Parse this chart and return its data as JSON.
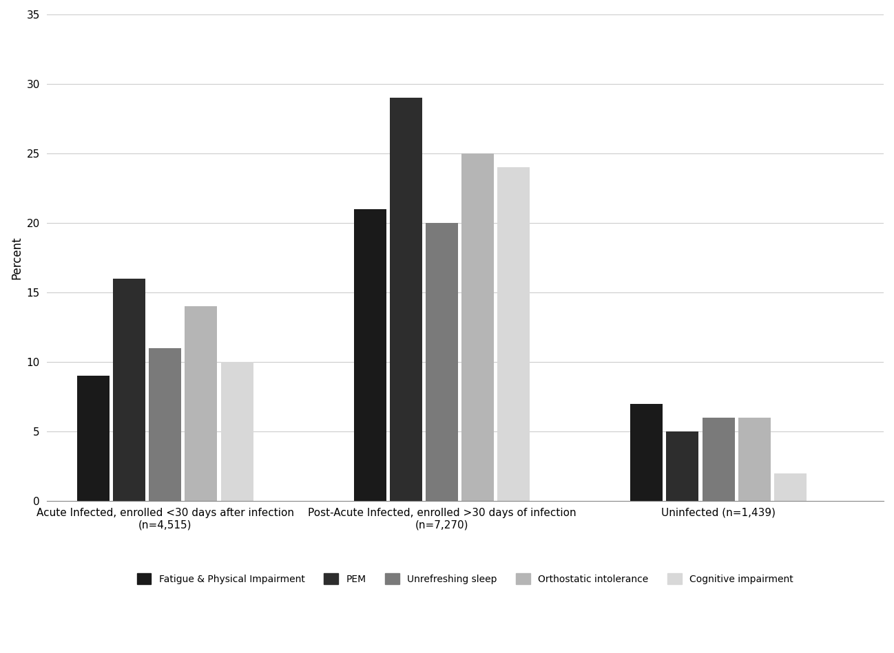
{
  "groups": [
    "Acute Infected, enrolled <30 days after infection\n(n=4,515)",
    "Post-Acute Infected, enrolled >30 days of infection\n(n=7,270)",
    "Uninfected (n=1,439)"
  ],
  "series": [
    {
      "name": "Fatigue & Physical Impairment",
      "color": "#1a1a1a",
      "values": [
        9,
        21,
        7
      ]
    },
    {
      "name": "PEM",
      "color": "#2d2d2d",
      "values": [
        16,
        29,
        5
      ]
    },
    {
      "name": "Unrefreshing sleep",
      "color": "#7a7a7a",
      "values": [
        11,
        20,
        6
      ]
    },
    {
      "name": "Orthostatic intolerance",
      "color": "#b5b5b5",
      "values": [
        14,
        25,
        6
      ]
    },
    {
      "name": "Cognitive impairment",
      "color": "#d8d8d8",
      "values": [
        10,
        24,
        2
      ]
    }
  ],
  "ylabel": "Percent",
  "ylim": [
    0,
    35
  ],
  "yticks": [
    0,
    5,
    10,
    15,
    20,
    25,
    30,
    35
  ],
  "bar_width": 0.09,
  "group_centers": [
    0.28,
    1.05,
    1.82
  ],
  "background_color": "#ffffff",
  "grid_color": "#cccccc",
  "legend_ncol": 5,
  "axis_fontsize": 12,
  "tick_fontsize": 11,
  "legend_fontsize": 10
}
